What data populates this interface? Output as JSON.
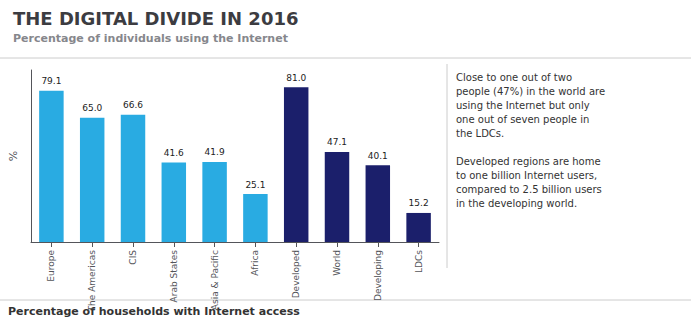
{
  "chart_data": {
    "type": "bar",
    "title": "THE DIGITAL DIVIDE IN 2016",
    "subtitle": "Percentage of individuals using the Internet",
    "annotations": [
      "Close to one out of two\npeople (47%) in the world are\nusing the Internet but only\none out of seven people in\nthe LDCs.\n\nDeveloped regions are home\nto one billion Internet users,\ncompared to 2.5 billion users\nin the developing world.",
      "Percentage of households with Internet access"
    ],
    "y_label": "%",
    "categories": [
      "Europe",
      "The Americas",
      "CIS",
      "Arab States",
      "Asia & Pacific",
      "Africa",
      "Developed",
      "World",
      "Developing",
      "LDCs"
    ],
    "values": [
      79.1,
      65.0,
      66.6,
      41.6,
      41.9,
      25.1,
      81.0,
      47.1,
      40.1,
      15.2
    ],
    "value_labels": [
      "79.1",
      "65.0",
      "66.6",
      "41.6",
      "41.9",
      "25.1",
      "81.0",
      "47.1",
      "40.1",
      "15.2"
    ],
    "colors": [
      "#29abe2",
      "#29abe2",
      "#29abe2",
      "#29abe2",
      "#29abe2",
      "#29abe2",
      "#1b1f6b",
      "#1b1f6b",
      "#1b1f6b",
      "#1b1f6b"
    ],
    "ylim": [
      0,
      90
    ],
    "data_labels": true,
    "tick_labels": "x",
    "grid": false
  }
}
